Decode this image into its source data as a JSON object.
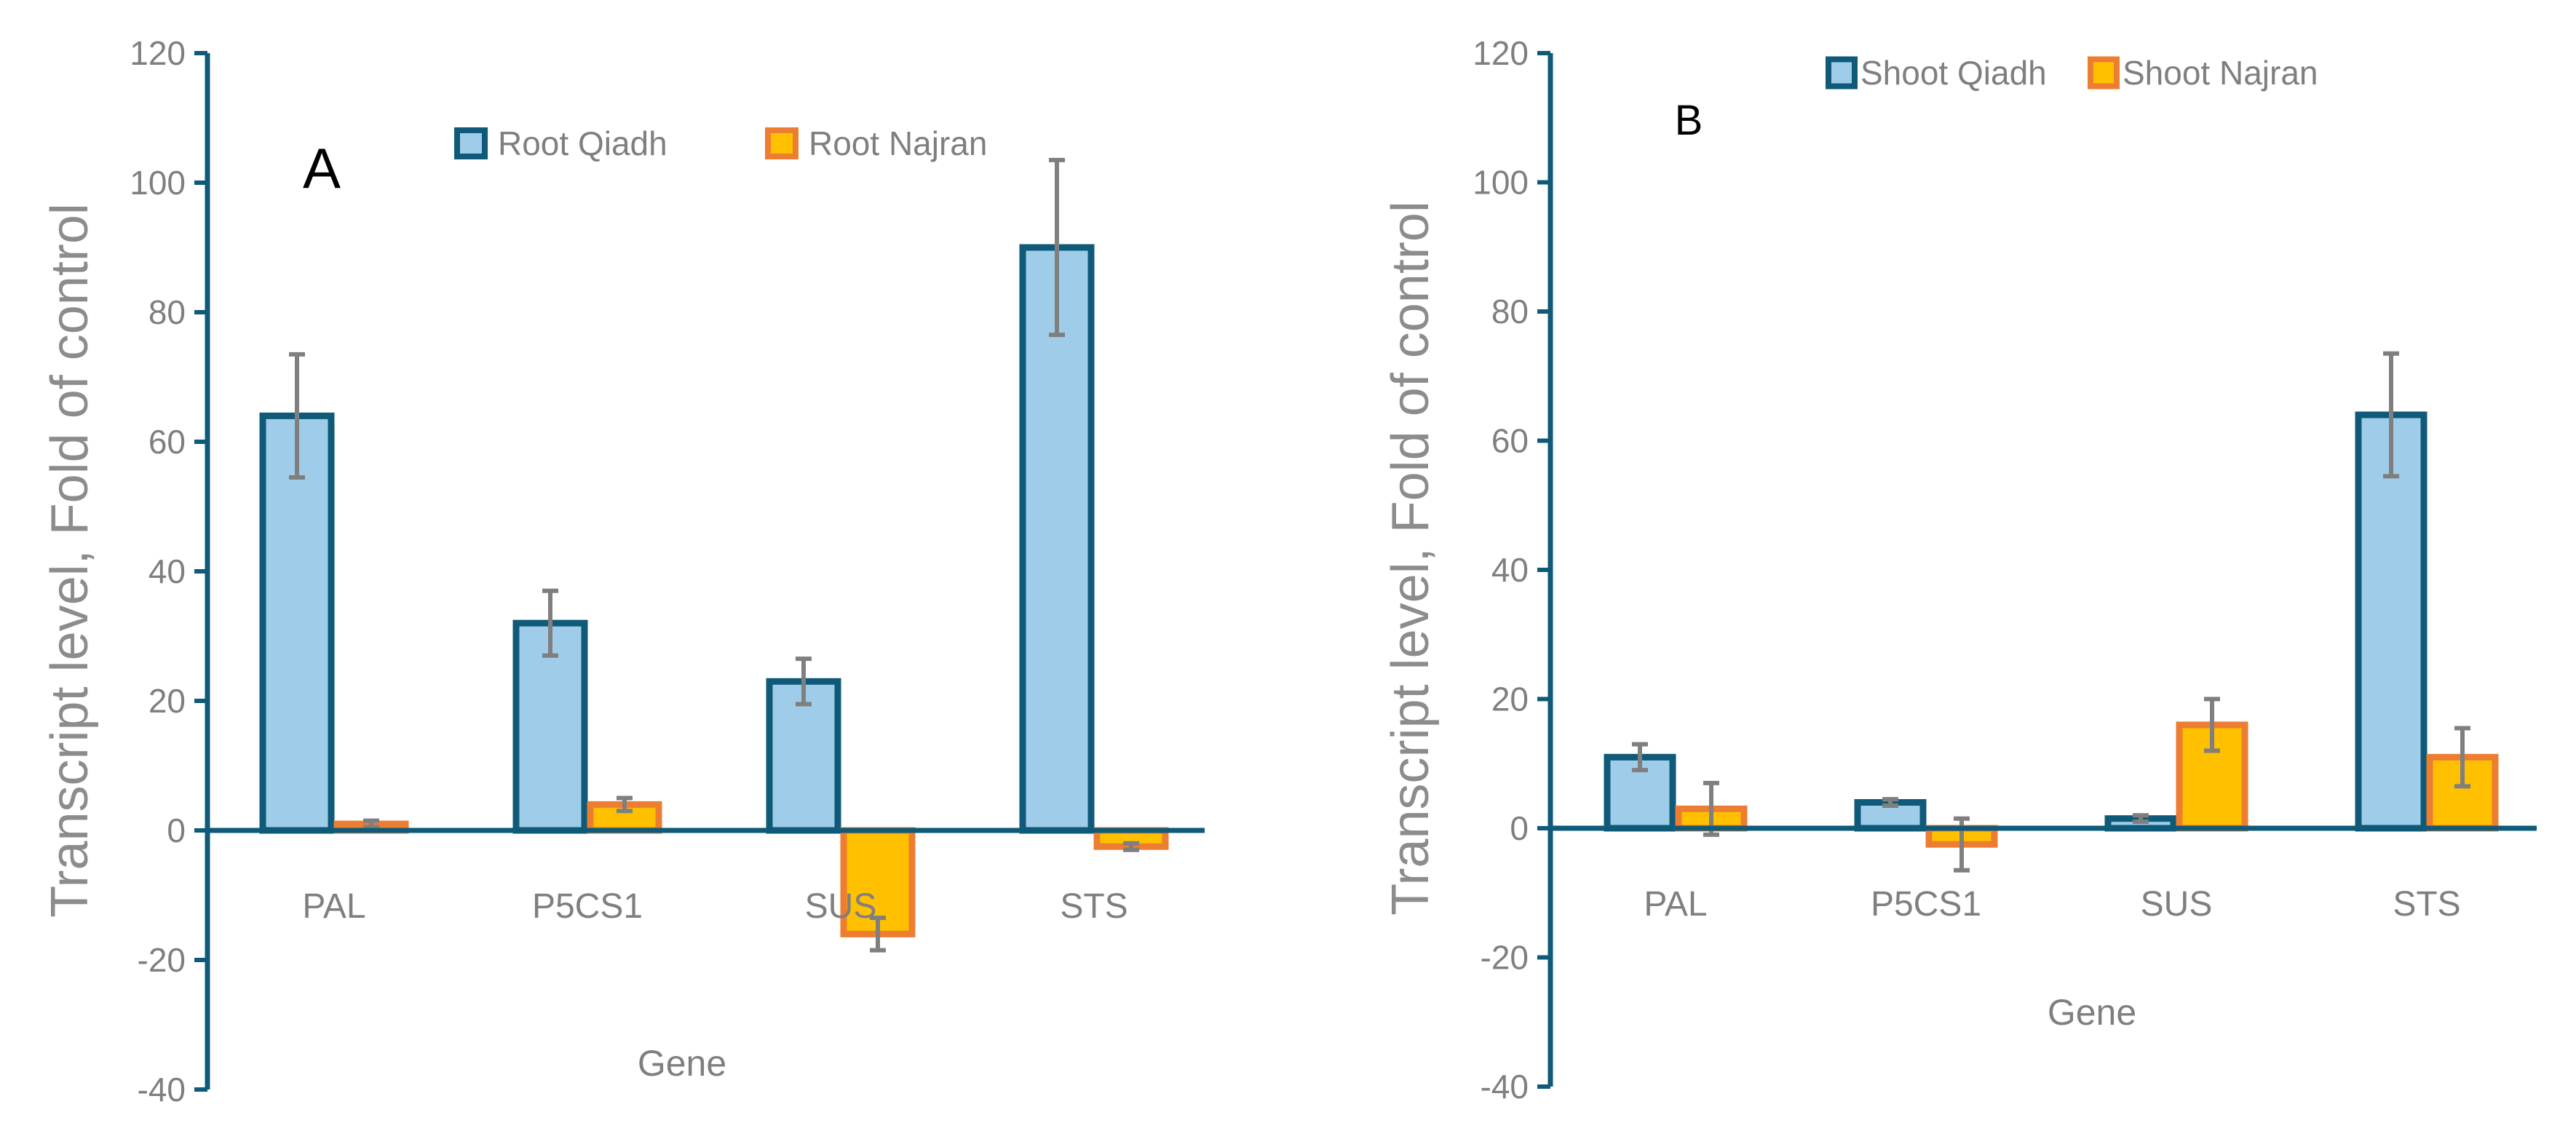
{
  "colors": {
    "series1_fill": "#9fcde9",
    "series1_stroke": "#0f5a78",
    "series2_fill": "#ffc000",
    "series2_stroke": "#ed7d31",
    "axis": "#0f5a78",
    "error_bar": "#7f7f7f",
    "text": "#7f7f7f"
  },
  "chart_data": [
    {
      "type": "bar",
      "panel_label": "A",
      "title": "",
      "xlabel": "Gene",
      "ylabel": "Transcript level, Fold of control",
      "ylim": [
        -40,
        120
      ],
      "yticks": [
        -40,
        -20,
        0,
        20,
        40,
        60,
        80,
        100,
        120
      ],
      "categories": [
        "PAL",
        "P5CS1",
        "SUS",
        "STS"
      ],
      "series": [
        {
          "name": "Root Qiadh",
          "values": [
            64,
            32,
            23,
            90
          ],
          "errors": [
            9.5,
            5,
            3.5,
            13.5
          ]
        },
        {
          "name": "Root Najran",
          "values": [
            1,
            4,
            -16,
            -2.5
          ],
          "errors": [
            0.5,
            1,
            2.5,
            0.5
          ]
        }
      ],
      "legend_position": "top"
    },
    {
      "type": "bar",
      "panel_label": "B",
      "title": "",
      "xlabel": "Gene",
      "ylabel": "Transcript level, Fold of control",
      "ylim": [
        -40,
        120
      ],
      "yticks": [
        -40,
        -20,
        0,
        20,
        40,
        60,
        80,
        100,
        120
      ],
      "categories": [
        "PAL",
        "P5CS1",
        "SUS",
        "STS"
      ],
      "series": [
        {
          "name": "Shoot Qiadh",
          "values": [
            11,
            4,
            1.5,
            64
          ],
          "errors": [
            2,
            0.5,
            0.5,
            9.5
          ]
        },
        {
          "name": "Shoot Najran",
          "values": [
            3,
            -2.5,
            16,
            11
          ],
          "errors": [
            4,
            4,
            4,
            4.5
          ]
        }
      ],
      "legend_position": "top"
    }
  ]
}
